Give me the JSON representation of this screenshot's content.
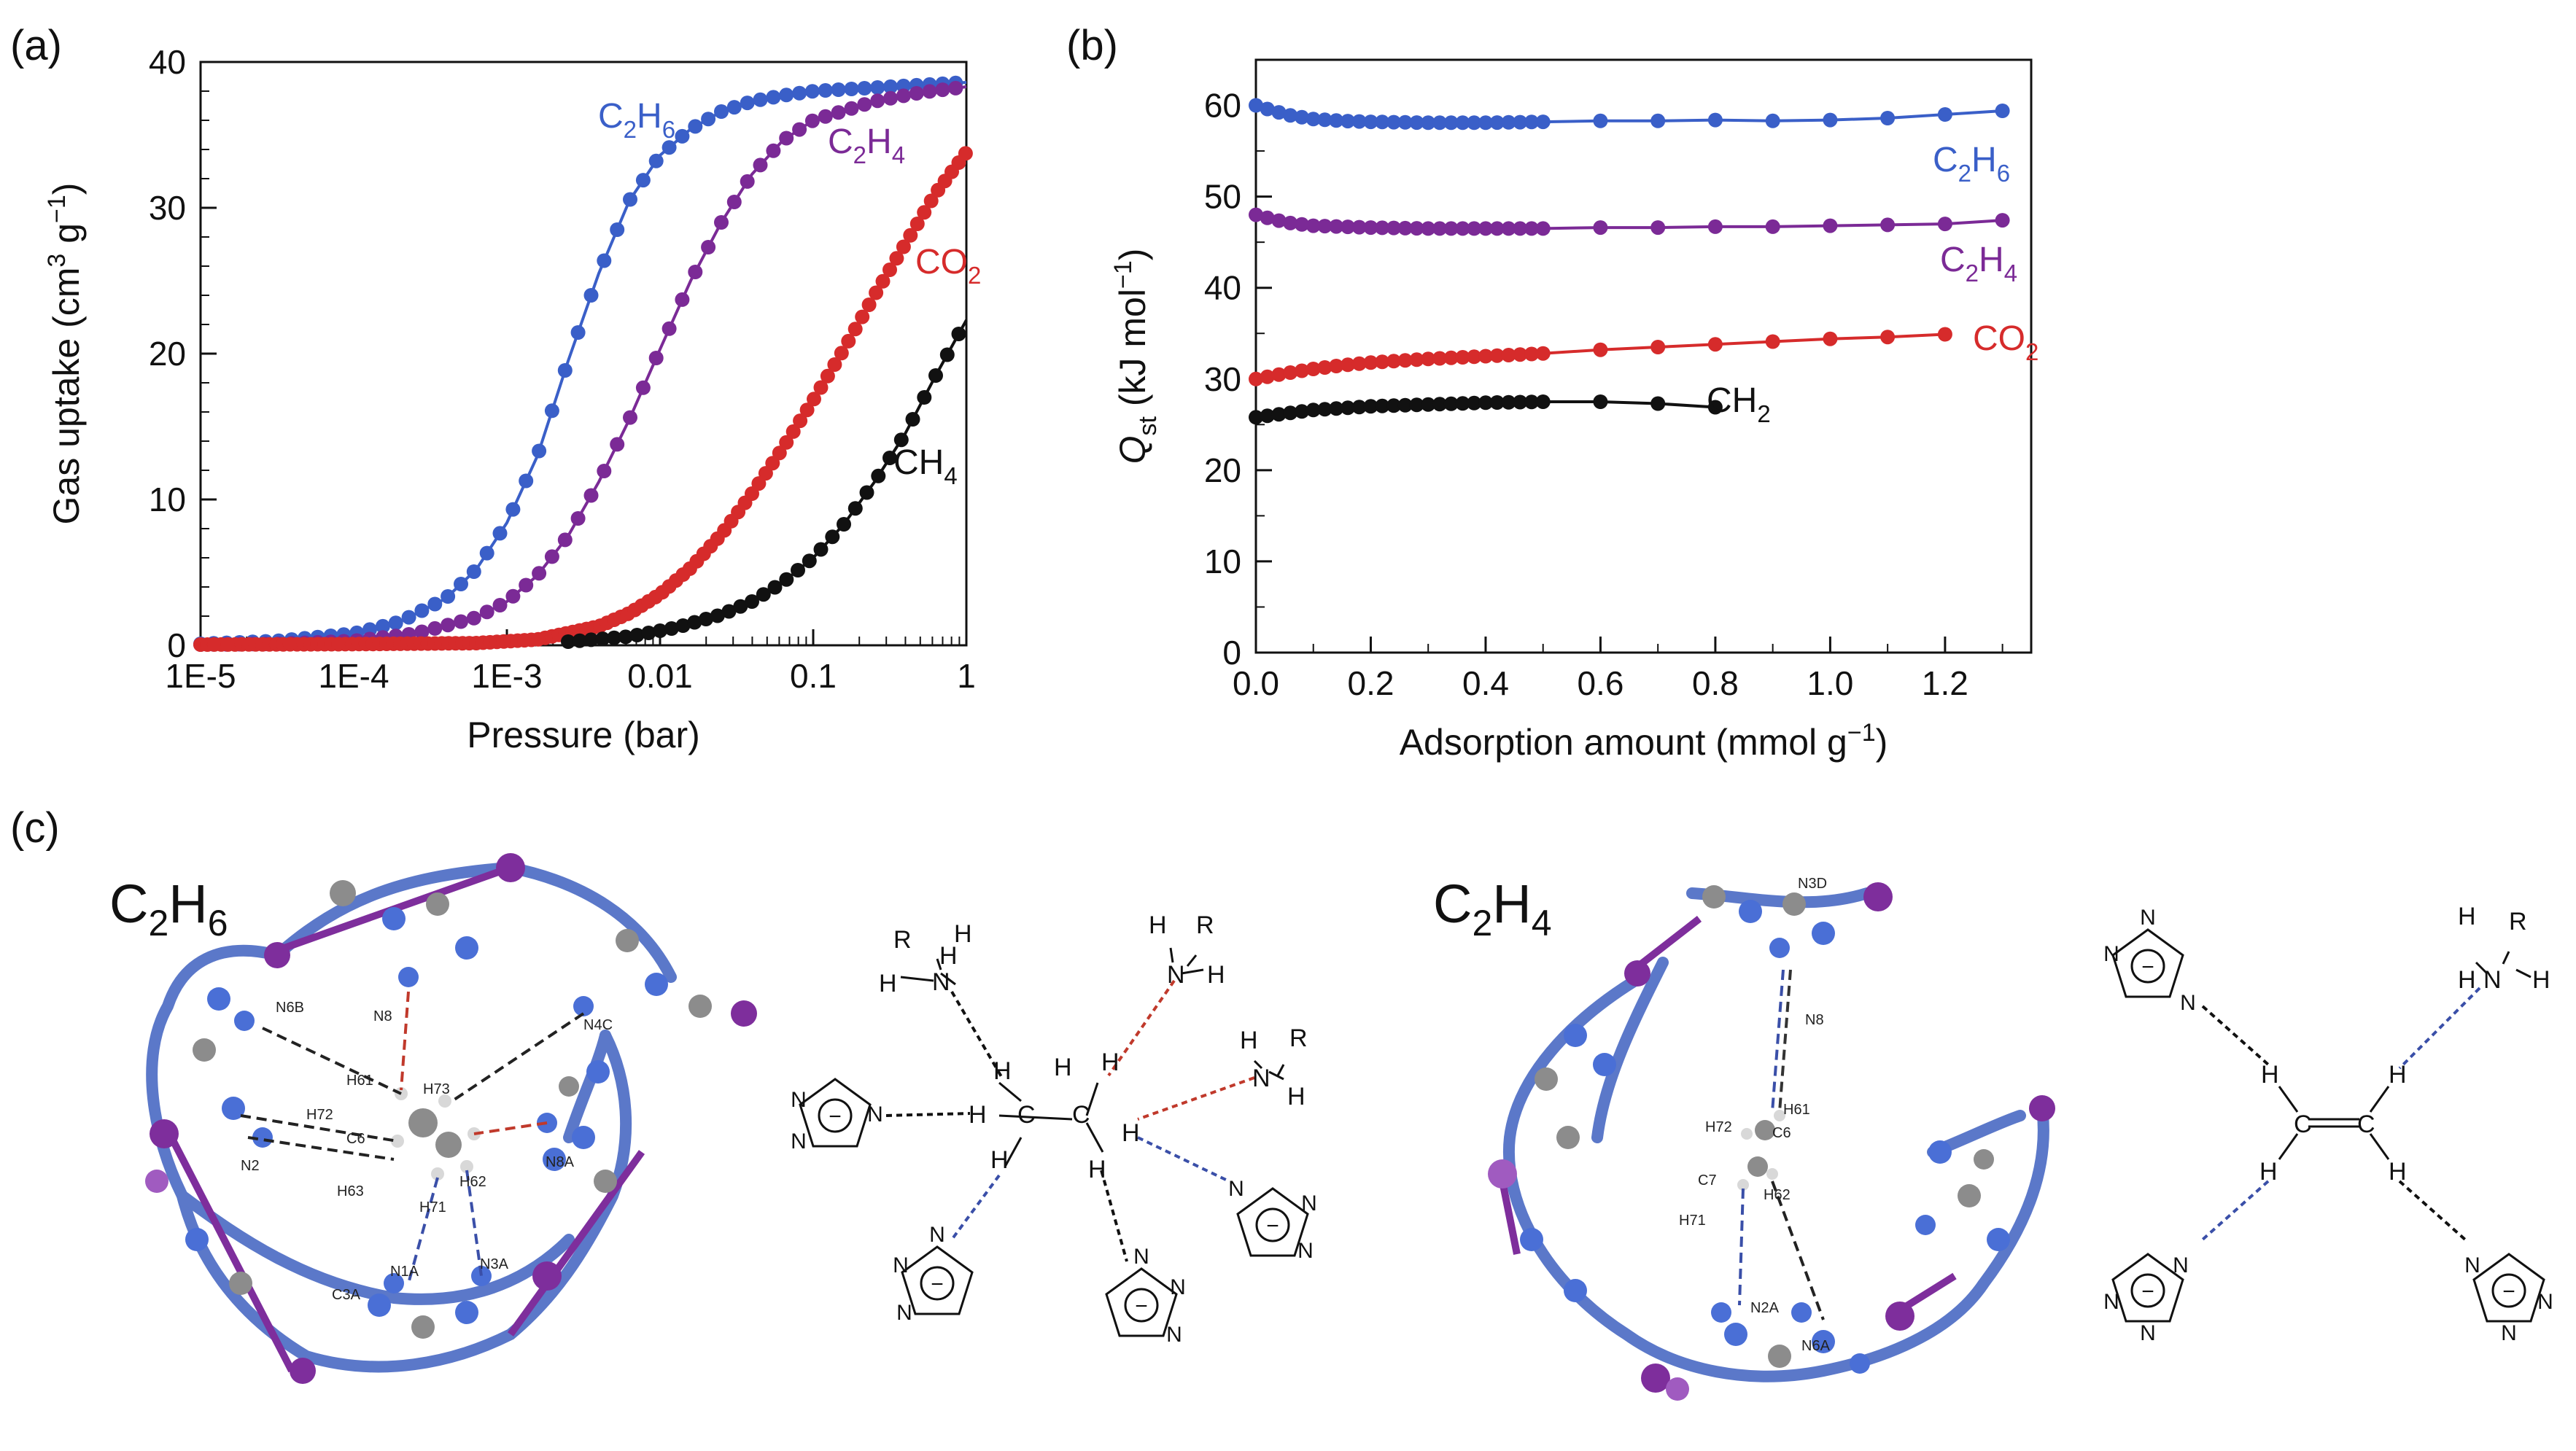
{
  "panels": {
    "a": {
      "letter": "(a)"
    },
    "b": {
      "letter": "(b)"
    },
    "c": {
      "letter": "(c)"
    }
  },
  "chart_data": [
    {
      "type": "line",
      "id": "a",
      "xlabel": "Pressure (bar)",
      "ylabel": "Gas uptake (cm3 g−1)",
      "ylabel_parts": [
        "Gas uptake (cm",
        "3",
        " g",
        "−1",
        ")"
      ],
      "xscale": "log",
      "xlim": [
        1e-05,
        1
      ],
      "ylim": [
        0,
        40
      ],
      "xticks": [
        1e-05,
        0.0001,
        0.001,
        0.01,
        0.1,
        1
      ],
      "xtick_labels": [
        "1E-5",
        "1E-4",
        "1E-3",
        "0.01",
        "0.1",
        "1"
      ],
      "yticks": [
        0,
        10,
        20,
        30,
        40
      ],
      "ytick_labels": [
        "0",
        "10",
        "20",
        "30",
        "40"
      ],
      "grid": false,
      "series": [
        {
          "name": "C2H6",
          "label_parts": [
            "C",
            "2",
            "H",
            "6"
          ],
          "color": "#3a5fc8",
          "logpoints": [
            [
              -5,
              0.1
            ],
            [
              -4.5,
              0.3
            ],
            [
              -4,
              0.8
            ],
            [
              -3.7,
              1.6
            ],
            [
              -3.4,
              3.2
            ],
            [
              -3.2,
              5.2
            ],
            [
              -3,
              8.4
            ],
            [
              -2.8,
              13
            ],
            [
              -2.6,
              19.5
            ],
            [
              -2.4,
              25.5
            ],
            [
              -2.2,
              30.5
            ],
            [
              -2,
              33.6
            ],
            [
              -1.8,
              35.4
            ],
            [
              -1.6,
              36.6
            ],
            [
              -1.4,
              37.3
            ],
            [
              -1.2,
              37.7
            ],
            [
              -1,
              38
            ],
            [
              -0.5,
              38.3
            ],
            [
              0,
              38.6
            ]
          ]
        },
        {
          "name": "C2H4",
          "label_parts": [
            "C",
            "2",
            "H",
            "4"
          ],
          "color": "#7b2a96",
          "logpoints": [
            [
              -5,
              0.05
            ],
            [
              -4.5,
              0.1
            ],
            [
              -4,
              0.3
            ],
            [
              -3.6,
              0.8
            ],
            [
              -3.2,
              1.9
            ],
            [
              -3,
              3
            ],
            [
              -2.8,
              4.8
            ],
            [
              -2.6,
              7.5
            ],
            [
              -2.4,
              11.2
            ],
            [
              -2.2,
              15.5
            ],
            [
              -2,
              20.3
            ],
            [
              -1.8,
              25
            ],
            [
              -1.6,
              29
            ],
            [
              -1.4,
              32.3
            ],
            [
              -1.2,
              34.6
            ],
            [
              -1,
              36
            ],
            [
              -0.6,
              37.3
            ],
            [
              -0.3,
              37.9
            ],
            [
              0,
              38.3
            ]
          ]
        },
        {
          "name": "CO2",
          "label_parts": [
            "CO",
            "2"
          ],
          "color": "#d62b2b",
          "logpoints": [
            [
              -5,
              0.05
            ],
            [
              -4,
              0.08
            ],
            [
              -3.2,
              0.15
            ],
            [
              -2.8,
              0.4
            ],
            [
              -2.4,
              1.3
            ],
            [
              -2.2,
              2.2
            ],
            [
              -2,
              3.5
            ],
            [
              -1.8,
              5.3
            ],
            [
              -1.6,
              7.6
            ],
            [
              -1.4,
              10.4
            ],
            [
              -1.2,
              13.5
            ],
            [
              -1,
              16.8
            ],
            [
              -0.8,
              20.3
            ],
            [
              -0.6,
              24
            ],
            [
              -0.4,
              27.5
            ],
            [
              -0.2,
              31
            ],
            [
              0,
              33.8
            ]
          ]
        },
        {
          "name": "CH4",
          "label_parts": [
            "CH",
            "4"
          ],
          "color": "#111111",
          "logpoints": [
            [
              -2.6,
              0.25
            ],
            [
              -2.2,
              0.6
            ],
            [
              -1.9,
              1.2
            ],
            [
              -1.6,
              2.1
            ],
            [
              -1.4,
              3
            ],
            [
              -1.2,
              4.3
            ],
            [
              -1,
              6
            ],
            [
              -0.8,
              8.3
            ],
            [
              -0.6,
              11.2
            ],
            [
              -0.4,
              14.5
            ],
            [
              -0.2,
              18.5
            ],
            [
              0,
              22.3
            ]
          ]
        }
      ]
    },
    {
      "type": "line",
      "id": "b",
      "xlabel": "Adsorption amount (mmol g−1)",
      "xlabel_parts": [
        "Adsorption amount (mmol g",
        "−1",
        ")"
      ],
      "ylabel": "Qst (kJ mol−1)",
      "ylabel_parts": [
        "Q",
        "st",
        " (kJ mol",
        "−1",
        ")"
      ],
      "xlim": [
        0,
        1.35
      ],
      "ylim": [
        0,
        65
      ],
      "xticks": [
        0,
        0.2,
        0.4,
        0.6,
        0.8,
        1.0,
        1.2
      ],
      "xtick_labels": [
        "0.0",
        "0.2",
        "0.4",
        "0.6",
        "0.8",
        "1.0",
        "1.2"
      ],
      "yticks": [
        0,
        10,
        20,
        30,
        40,
        50,
        60
      ],
      "ytick_labels": [
        "0",
        "10",
        "20",
        "30",
        "40",
        "50",
        "60"
      ],
      "grid": false,
      "series": [
        {
          "name": "C2H6",
          "label_parts": [
            "C",
            "2",
            "H",
            "6"
          ],
          "color": "#3a5fc8",
          "points": [
            [
              0,
              60
            ],
            [
              0.03,
              59.4
            ],
            [
              0.06,
              58.9
            ],
            [
              0.1,
              58.5
            ],
            [
              0.15,
              58.3
            ],
            [
              0.2,
              58.2
            ],
            [
              0.3,
              58.1
            ],
            [
              0.4,
              58.1
            ],
            [
              0.5,
              58.2
            ],
            [
              0.6,
              58.3
            ],
            [
              0.7,
              58.3
            ],
            [
              0.8,
              58.4
            ],
            [
              0.9,
              58.3
            ],
            [
              1.0,
              58.4
            ],
            [
              1.1,
              58.6
            ],
            [
              1.2,
              59
            ],
            [
              1.3,
              59.4
            ]
          ]
        },
        {
          "name": "C2H4",
          "label_parts": [
            "C",
            "2",
            "H",
            "4"
          ],
          "color": "#7b2a96",
          "points": [
            [
              0,
              48
            ],
            [
              0.03,
              47.5
            ],
            [
              0.06,
              47.1
            ],
            [
              0.1,
              46.8
            ],
            [
              0.2,
              46.6
            ],
            [
              0.3,
              46.5
            ],
            [
              0.4,
              46.5
            ],
            [
              0.5,
              46.5
            ],
            [
              0.6,
              46.6
            ],
            [
              0.7,
              46.6
            ],
            [
              0.8,
              46.7
            ],
            [
              0.9,
              46.7
            ],
            [
              1.0,
              46.8
            ],
            [
              1.1,
              46.9
            ],
            [
              1.2,
              47
            ],
            [
              1.3,
              47.4
            ]
          ]
        },
        {
          "name": "CO2",
          "label_parts": [
            "CO",
            "2"
          ],
          "color": "#d62b2b",
          "points": [
            [
              0,
              30
            ],
            [
              0.05,
              30.6
            ],
            [
              0.1,
              31.1
            ],
            [
              0.15,
              31.5
            ],
            [
              0.2,
              31.8
            ],
            [
              0.3,
              32.2
            ],
            [
              0.4,
              32.5
            ],
            [
              0.5,
              32.8
            ],
            [
              0.6,
              33.2
            ],
            [
              0.7,
              33.5
            ],
            [
              0.8,
              33.8
            ],
            [
              0.9,
              34.1
            ],
            [
              1.0,
              34.4
            ],
            [
              1.1,
              34.6
            ],
            [
              1.2,
              34.9
            ]
          ]
        },
        {
          "name": "CH2",
          "label_parts": [
            "CH",
            "2"
          ],
          "color": "#111111",
          "points": [
            [
              0,
              25.8
            ],
            [
              0.05,
              26.2
            ],
            [
              0.1,
              26.6
            ],
            [
              0.15,
              26.8
            ],
            [
              0.2,
              27
            ],
            [
              0.3,
              27.2
            ],
            [
              0.4,
              27.4
            ],
            [
              0.5,
              27.5
            ],
            [
              0.6,
              27.5
            ],
            [
              0.7,
              27.3
            ],
            [
              0.8,
              26.9
            ]
          ]
        }
      ]
    }
  ],
  "structures": {
    "c2h6": {
      "formula_parts": [
        "C",
        "2",
        "H",
        "6"
      ],
      "atom_labels": [
        "N6B",
        "N8",
        "N4C",
        "H61",
        "H73",
        "H72",
        "C6",
        "N2",
        "H63",
        "H62",
        "N8A",
        "H71",
        "N1A",
        "N3A",
        "C3A"
      ],
      "scheme_labels": [
        "R",
        "H",
        "H",
        "N",
        "H",
        "R",
        "H",
        "N",
        "H",
        "H",
        "R",
        "N",
        "H",
        "H",
        "C",
        "C",
        "H",
        "H",
        "H",
        "H",
        "H",
        "H"
      ]
    },
    "c2h4": {
      "formula_parts": [
        "C",
        "2",
        "H",
        "4"
      ],
      "atom_labels": [
        "N3D",
        "N8",
        "H61",
        "H72",
        "C6",
        "C7",
        "H62",
        "H71",
        "N2A",
        "N6A"
      ],
      "scheme_labels": [
        "H",
        "R",
        "N",
        "H",
        "H",
        "C",
        "C",
        "H",
        "H",
        "H",
        "H"
      ]
    },
    "triazole": {
      "ring_atom": "N",
      "charge": "−"
    }
  },
  "colors": {
    "blue": "#3a5fc8",
    "purple": "#7b2a96",
    "red": "#d62b2b",
    "black": "#111111",
    "gray_atom": "#8c8c8c",
    "blue_atom": "#4a6fd6",
    "purple_atom": "#7e2e9c"
  }
}
